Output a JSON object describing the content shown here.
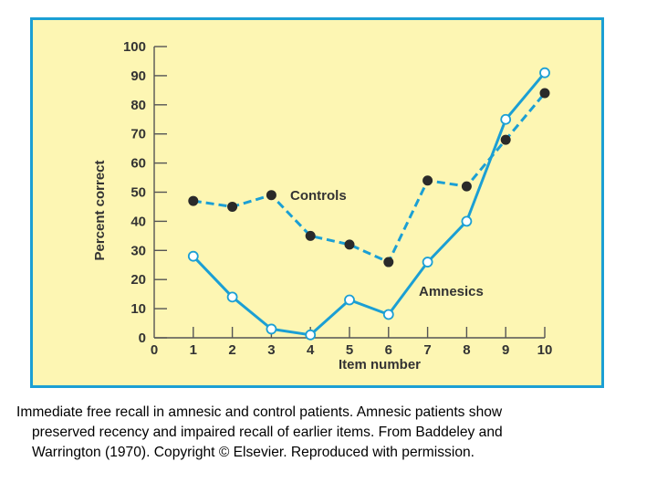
{
  "chart_data": {
    "type": "line",
    "title": "",
    "xlabel": "Item number",
    "ylabel": "Percent correct",
    "xlim": [
      0,
      10
    ],
    "ylim": [
      0,
      100
    ],
    "x_ticks": [
      0,
      1,
      2,
      3,
      4,
      5,
      6,
      7,
      8,
      9,
      10
    ],
    "y_ticks": [
      0,
      10,
      20,
      30,
      40,
      50,
      60,
      70,
      80,
      90,
      100
    ],
    "grid": false,
    "series": [
      {
        "name": "Controls",
        "style": "dashed",
        "marker": "filled-circle",
        "x": [
          1,
          2,
          3,
          4,
          5,
          6,
          7,
          8,
          9,
          10
        ],
        "values": [
          47,
          45,
          49,
          35,
          32,
          26,
          54,
          52,
          68,
          84
        ]
      },
      {
        "name": "Amnesics",
        "style": "solid",
        "marker": "open-circle",
        "x": [
          1,
          2,
          3,
          4,
          5,
          6,
          7,
          8,
          9,
          10
        ],
        "values": [
          28,
          14,
          3,
          1,
          13,
          8,
          26,
          40,
          75,
          91
        ]
      }
    ]
  },
  "colors": {
    "panel_background": "#fdf6b3",
    "panel_border": "#1b9fd4",
    "line": "#1b9fd4",
    "marker_fill": "#2a2a2a",
    "axis": "#555555"
  },
  "caption": {
    "line1": "Immediate free recall in amnesic and control patients. Amnesic patients show",
    "line2": "preserved recency and impaired recall of earlier items. From Baddeley and",
    "line3": "Warrington (1970). Copyright © Elsevier. Reproduced with permission."
  }
}
